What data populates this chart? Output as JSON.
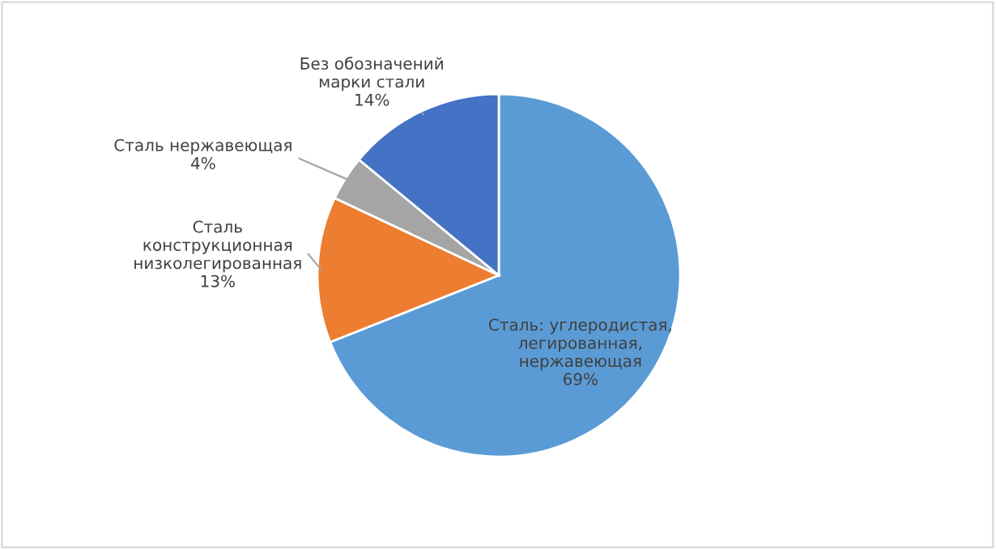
{
  "chart_data": {
    "type": "pie",
    "categories": [
      "Сталь: углеродистая,\nлегированная,\nнержавеющая",
      "Сталь\nконструкционная\nнизколегированная",
      "Сталь нержавеющая",
      "Без обозначений\nмарки стали"
    ],
    "values": [
      69,
      13,
      4,
      14
    ],
    "value_labels": [
      "69%",
      "13%",
      "4%",
      "14%"
    ],
    "colors": [
      "#5b9bd5",
      "#ed7d31",
      "#a5a5a5",
      "#4472c4"
    ],
    "legend": false
  }
}
